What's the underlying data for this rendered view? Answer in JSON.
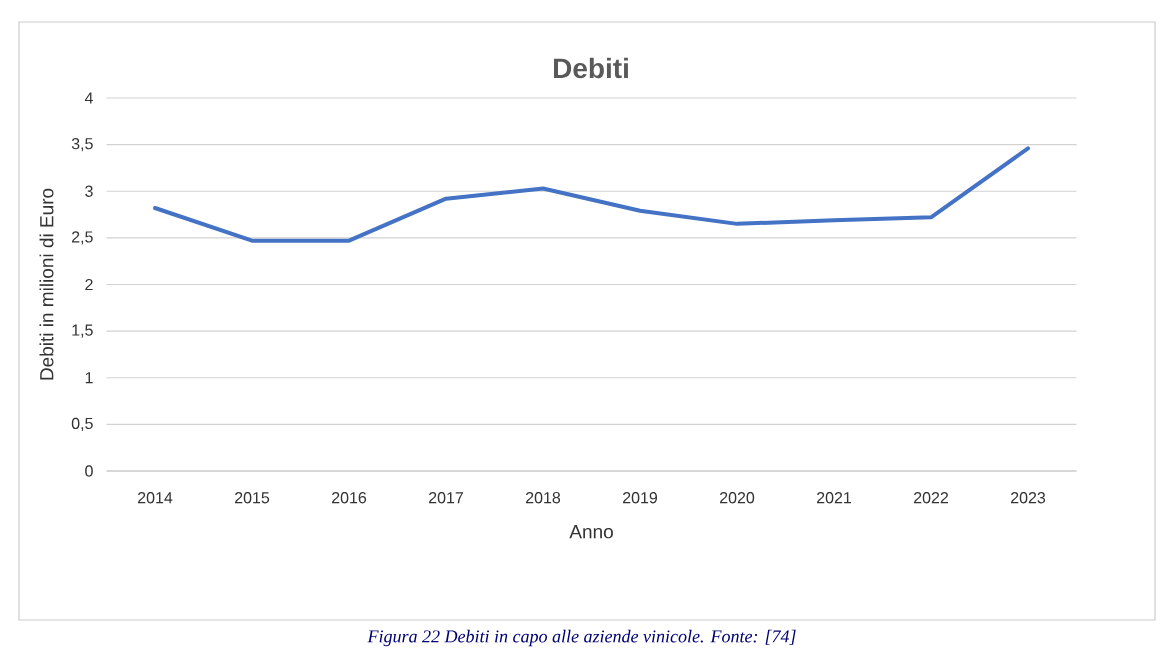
{
  "chart_data": {
    "type": "line",
    "title": "Debiti",
    "xlabel": "Anno",
    "ylabel": "Debiti in milioni di Euro",
    "categories": [
      "2014",
      "2015",
      "2016",
      "2017",
      "2018",
      "2019",
      "2020",
      "2021",
      "2022",
      "2023"
    ],
    "series": [
      {
        "color": "#4472c4",
        "values": [
          2.82,
          2.47,
          2.47,
          2.92,
          3.03,
          2.79,
          2.65,
          2.69,
          2.72,
          3.46
        ]
      }
    ],
    "ylim": [
      0,
      4
    ],
    "yticks": [
      0,
      {
        "value": 0.5,
        "label": "0,5"
      },
      1,
      {
        "value": 1.5,
        "label": "1,5"
      },
      2,
      {
        "value": 2.5,
        "label": "2,5"
      },
      3,
      {
        "value": 3.5,
        "label": "3,5"
      },
      4
    ],
    "grid": "y",
    "marker": "none",
    "line_style": "solid",
    "annotations": [
      "Figura 22 Debiti in capo alle aziende vinicole. Fonte: [74]"
    ]
  }
}
